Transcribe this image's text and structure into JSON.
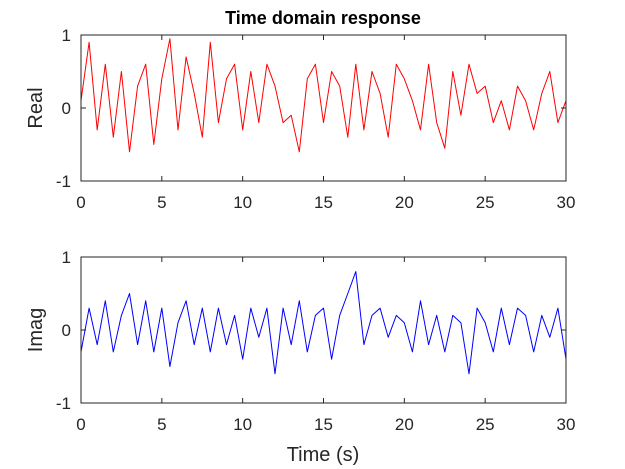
{
  "chart_data": [
    {
      "type": "line",
      "title": "Time domain response",
      "ylabel": "Real",
      "xlabel": "",
      "xlim": [
        0,
        30
      ],
      "ylim": [
        -1,
        1
      ],
      "x_ticks": [
        "0",
        "5",
        "10",
        "15",
        "20",
        "25",
        "30"
      ],
      "y_ticks": [
        "-1",
        "0",
        "1"
      ],
      "color": "#ff0000",
      "grid": false,
      "series": [
        {
          "x": [
            0,
            0.5,
            1,
            1.5,
            2,
            2.5,
            3,
            3.5,
            4,
            4.5,
            5,
            5.5,
            6,
            6.5,
            7,
            7.5,
            8,
            8.5,
            9,
            9.5,
            10,
            10.5,
            11,
            11.5,
            12,
            12.5,
            13,
            13.5,
            14,
            14.5,
            15,
            15.5,
            16,
            16.5,
            17,
            17.5,
            18,
            18.5,
            19,
            19.5,
            20,
            20.5,
            21,
            21.5,
            22,
            22.5,
            23,
            23.5,
            24,
            24.5,
            25,
            25.5,
            26,
            26.5,
            27,
            27.5,
            28,
            28.5,
            29,
            29.5,
            30
          ],
          "y": [
            0.1,
            0.9,
            -0.3,
            0.6,
            -0.4,
            0.5,
            -0.6,
            0.3,
            0.6,
            -0.5,
            0.4,
            0.95,
            -0.3,
            0.7,
            0.2,
            -0.4,
            0.9,
            -0.2,
            0.4,
            0.6,
            -0.3,
            0.5,
            -0.2,
            0.6,
            0.3,
            -0.2,
            -0.1,
            -0.6,
            0.4,
            0.6,
            -0.2,
            0.5,
            0.3,
            -0.4,
            0.6,
            -0.3,
            0.5,
            0.2,
            -0.4,
            0.6,
            0.4,
            0.1,
            -0.3,
            0.6,
            -0.2,
            -0.55,
            0.5,
            -0.1,
            0.6,
            0.2,
            0.3,
            -0.2,
            0.1,
            -0.3,
            0.3,
            0.1,
            -0.3,
            0.2,
            0.5,
            -0.2,
            0.1
          ]
        }
      ]
    },
    {
      "type": "line",
      "title": "",
      "ylabel": "Imag",
      "xlabel": "Time (s)",
      "xlim": [
        0,
        30
      ],
      "ylim": [
        -1,
        1
      ],
      "x_ticks": [
        "0",
        "5",
        "10",
        "15",
        "20",
        "25",
        "30"
      ],
      "y_ticks": [
        "-1",
        "0",
        "1"
      ],
      "color": "#0000ff",
      "grid": false,
      "series": [
        {
          "x": [
            0,
            0.5,
            1,
            1.5,
            2,
            2.5,
            3,
            3.5,
            4,
            4.5,
            5,
            5.5,
            6,
            6.5,
            7,
            7.5,
            8,
            8.5,
            9,
            9.5,
            10,
            10.5,
            11,
            11.5,
            12,
            12.5,
            13,
            13.5,
            14,
            14.5,
            15,
            15.5,
            16,
            16.5,
            17,
            17.5,
            18,
            18.5,
            19,
            19.5,
            20,
            20.5,
            21,
            21.5,
            22,
            22.5,
            23,
            23.5,
            24,
            24.5,
            25,
            25.5,
            26,
            26.5,
            27,
            27.5,
            28,
            28.5,
            29,
            29.5,
            30
          ],
          "y": [
            -0.3,
            0.3,
            -0.2,
            0.4,
            -0.3,
            0.2,
            0.5,
            -0.2,
            0.4,
            -0.3,
            0.3,
            -0.5,
            0.1,
            0.4,
            -0.2,
            0.3,
            -0.3,
            0.3,
            -0.2,
            0.2,
            -0.4,
            0.3,
            -0.1,
            0.3,
            -0.6,
            0.3,
            -0.2,
            0.4,
            -0.3,
            0.2,
            0.3,
            -0.4,
            0.2,
            0.5,
            0.8,
            -0.2,
            0.2,
            0.3,
            -0.1,
            0.2,
            0.1,
            -0.3,
            0.4,
            -0.2,
            0.2,
            -0.3,
            0.2,
            0.1,
            -0.6,
            0.3,
            0.1,
            -0.3,
            0.3,
            -0.2,
            0.3,
            0.2,
            -0.3,
            0.2,
            -0.1,
            0.3,
            -0.4
          ]
        }
      ]
    }
  ]
}
